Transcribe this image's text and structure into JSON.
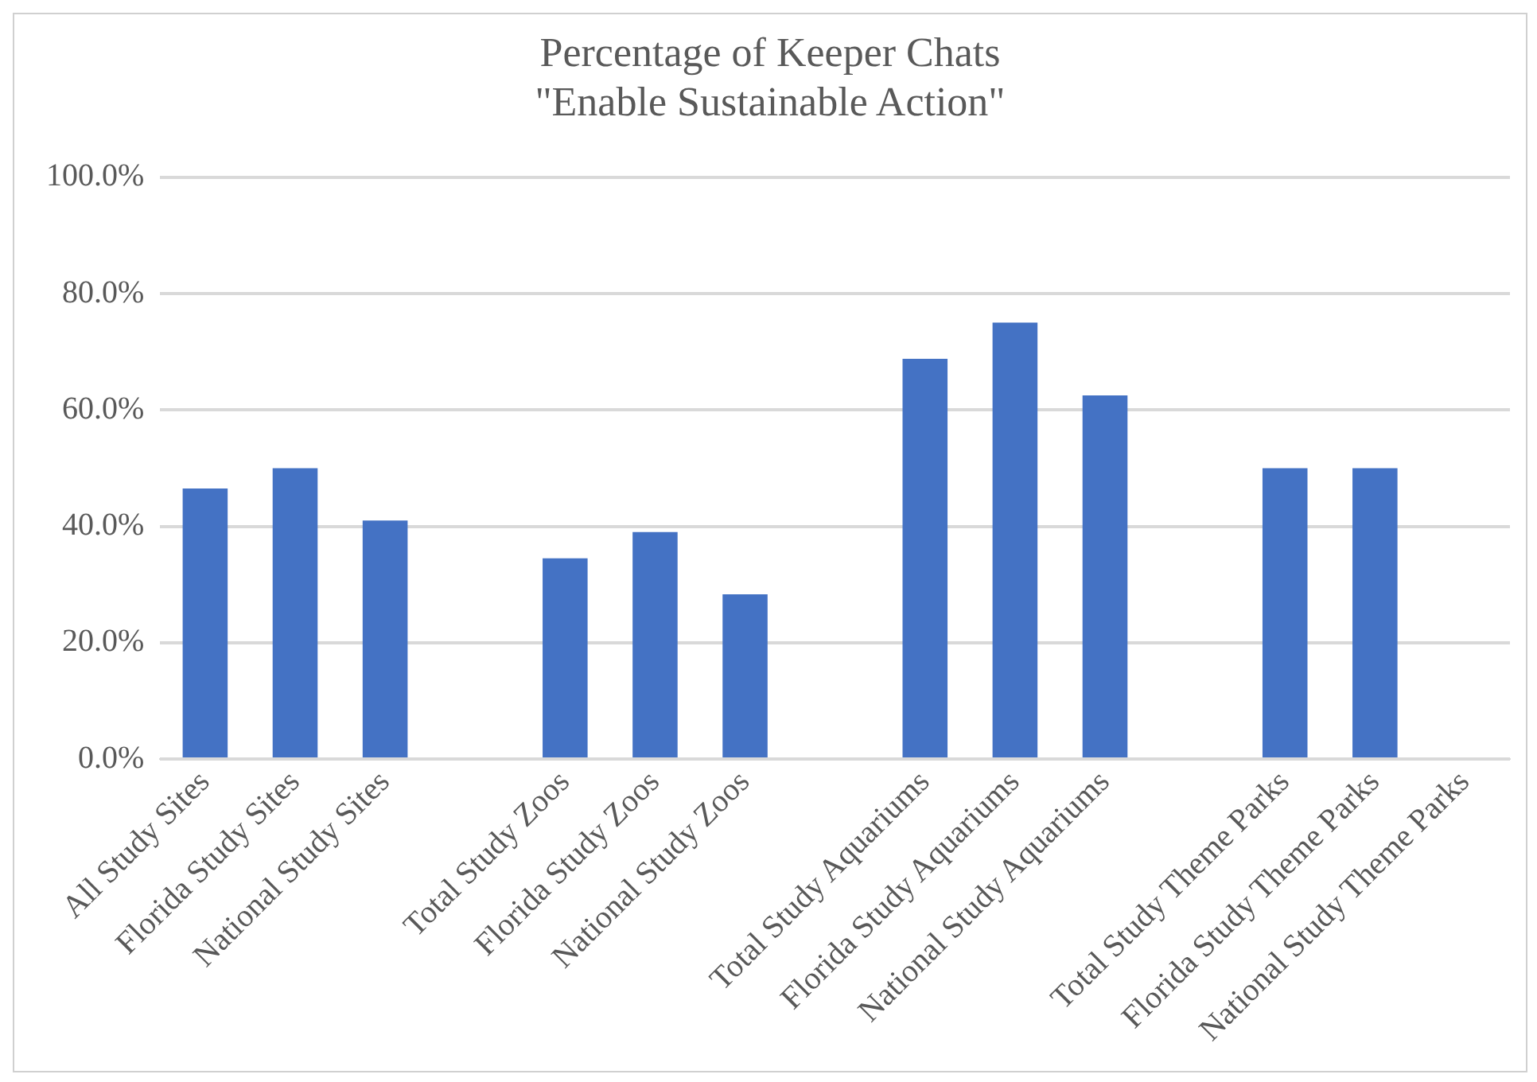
{
  "chart_data": {
    "type": "bar",
    "title": "Percentage of Keeper Chats\n\"Enable Sustainable Action\"",
    "categories": [
      "All Study Sites",
      "Florida Study Sites",
      "National Study Sites",
      null,
      "Total Study Zoos",
      "Florida Study Zoos",
      "National Study Zoos",
      null,
      "Total Study Aquariums",
      "Florida Study Aquariums",
      "National Study Aquariums",
      null,
      "Total Study Theme Parks",
      "Florida Study Theme Parks",
      "National Study Theme Parks"
    ],
    "values": [
      46.5,
      50,
      41,
      null,
      34.5,
      39,
      28.3,
      null,
      68.8,
      75,
      62.5,
      null,
      50,
      50,
      0
    ],
    "color": "#4472c4",
    "ylim": [
      0,
      100
    ],
    "yticks": [
      {
        "value": 0,
        "label": "0.0%"
      },
      {
        "value": 20,
        "label": "20.0%"
      },
      {
        "value": 40,
        "label": "40.0%"
      },
      {
        "value": 60,
        "label": "60.0%"
      },
      {
        "value": 80,
        "label": "80.0%"
      },
      {
        "value": 100,
        "label": "100.0%"
      }
    ],
    "grid": "y",
    "legend": false
  }
}
